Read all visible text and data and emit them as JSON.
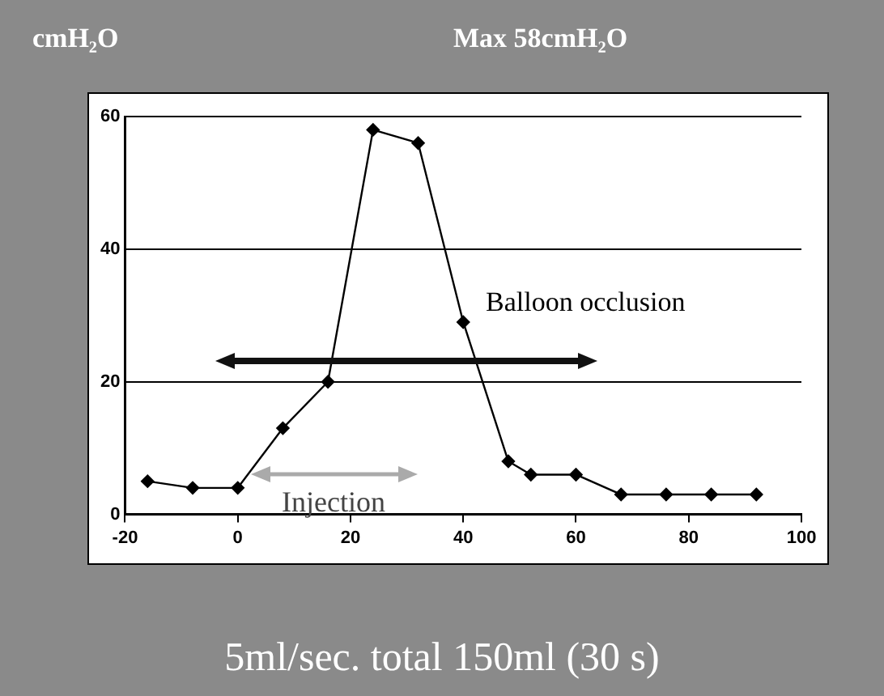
{
  "chart_data": {
    "type": "line",
    "ylabel": "cmH₂O",
    "annotations": [
      "Max 58cmH₂O",
      "5ml/sec. total 150ml (30 s)",
      "Balloon occlusion",
      "Injection"
    ],
    "x": [
      -16,
      -8,
      0,
      8,
      16,
      24,
      32,
      40,
      48,
      52,
      60,
      68,
      76,
      84,
      92
    ],
    "series": [
      {
        "color": "#000000",
        "values": [
          5,
          4,
          4,
          13,
          20,
          58,
          56,
          29,
          8,
          6,
          6,
          3,
          3,
          3,
          3
        ]
      }
    ],
    "xlim": [
      -20,
      100
    ],
    "xticks": [
      -20,
      0,
      20,
      40,
      60,
      80,
      100
    ],
    "ylim": [
      0,
      60
    ],
    "yticks": [
      0,
      20,
      40,
      60
    ],
    "grid": "y",
    "legend": false,
    "marker": "diamond",
    "line_style": "solid"
  }
}
